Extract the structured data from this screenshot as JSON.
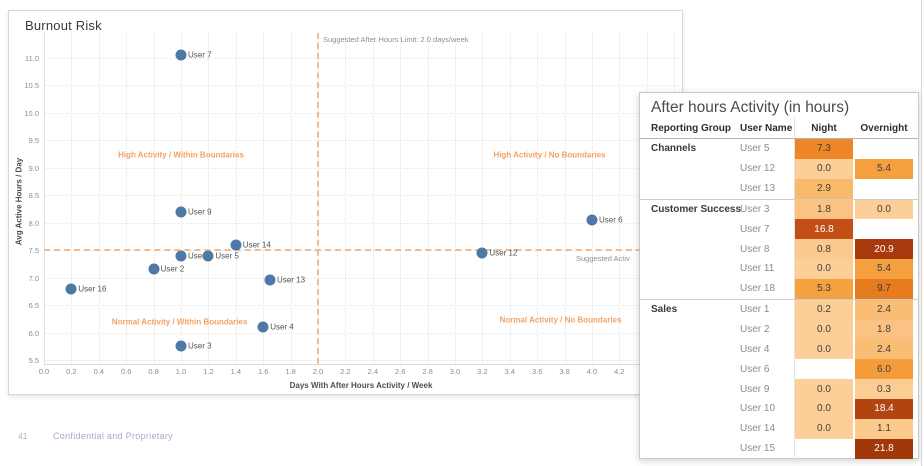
{
  "page": {
    "footer_page_number": "41",
    "footer_text": "Confidential and Proprietary"
  },
  "chart_data": [
    {
      "type": "scatter",
      "title": "Burnout Risk",
      "xlabel": "Days With After Hours Activity / Week",
      "ylabel": "Avg Active Hours / Day",
      "xlim": [
        0.0,
        4.2
      ],
      "ylim": [
        5.5,
        11.0
      ],
      "x_ticks": [
        "0.0",
        "0.2",
        "0.4",
        "0.6",
        "0.8",
        "1.0",
        "1.2",
        "1.4",
        "1.6",
        "1.8",
        "2.0",
        "2.2",
        "2.4",
        "2.6",
        "2.8",
        "3.0",
        "3.2",
        "3.4",
        "3.6",
        "3.8",
        "4.0",
        "4.2"
      ],
      "y_ticks": [
        "11.0",
        "10.5",
        "10.0",
        "9.5",
        "9.0",
        "8.5",
        "8.0",
        "7.5",
        "7.0",
        "6.5",
        "6.0",
        "5.5"
      ],
      "marker_color": "#4e79a7",
      "accent_color": "#f3a264",
      "ref_line_color": "#f2bc90",
      "grid": true,
      "points": [
        {
          "label": "User 7",
          "x": 1.0,
          "y": 11.05
        },
        {
          "label": "User 9",
          "x": 1.0,
          "y": 8.2
        },
        {
          "label": "User 14",
          "x": 1.4,
          "y": 7.6
        },
        {
          "label": "User 1",
          "x": 1.0,
          "y": 7.4
        },
        {
          "label": "User 5",
          "x": 1.2,
          "y": 7.4
        },
        {
          "label": "User 2",
          "x": 0.8,
          "y": 7.15
        },
        {
          "label": "User 16",
          "x": 0.2,
          "y": 6.8
        },
        {
          "label": "User 13",
          "x": 1.65,
          "y": 6.95
        },
        {
          "label": "User 4",
          "x": 1.6,
          "y": 6.1
        },
        {
          "label": "User 3",
          "x": 1.0,
          "y": 5.75
        },
        {
          "label": "User 12",
          "x": 3.2,
          "y": 7.45
        },
        {
          "label": "User 6",
          "x": 4.0,
          "y": 8.05
        }
      ],
      "ref_line_x": {
        "value": 2.0,
        "label": "Suggested After Hours Limit: 2.0 days/week"
      },
      "ref_line_y": {
        "value": 7.5,
        "label": "Suggested Activ"
      },
      "quadrant_labels": [
        {
          "text": "High Activity / Within Boundaries",
          "x": 1.0,
          "y": 9.23
        },
        {
          "text": "High Activity / No Boundaries",
          "x": 3.69,
          "y": 9.23
        },
        {
          "text": "Normal Activity / Within Boundaries",
          "x": 0.99,
          "y": 6.19
        },
        {
          "text": "Normal Activity / No Boundaries",
          "x": 3.77,
          "y": 6.23
        }
      ]
    },
    {
      "type": "table",
      "title": "After hours Activity (in hours)",
      "columns": [
        "Reporting Group",
        "User Name",
        "Night",
        "Overnight"
      ],
      "groups": [
        {
          "name": "Channels",
          "rows": [
            {
              "user": "User 5",
              "night": "7.3",
              "night_color": "#EE8526",
              "overnight": null,
              "overnight_color": null
            },
            {
              "user": "User 12",
              "night": "0.0",
              "night_color": "#FBCF97",
              "overnight": "5.4",
              "overnight_color": "#F5A03E"
            },
            {
              "user": "User 13",
              "night": "2.9",
              "night_color": "#F8B96B",
              "overnight": null,
              "overnight_color": null
            }
          ]
        },
        {
          "name": "Customer Success",
          "rows": [
            {
              "user": "User 3",
              "night": "1.8",
              "night_color": "#FAC384",
              "overnight": "0.0",
              "overnight_color": "#FBCF97"
            },
            {
              "user": "User 7",
              "night": "16.8",
              "night_color": "#C14F16",
              "overnight": null,
              "overnight_color": null
            },
            {
              "user": "User 8",
              "night": "0.8",
              "night_color": "#FBC98D",
              "overnight": "20.9",
              "overnight_color": "#A63A0D"
            },
            {
              "user": "User 11",
              "night": "0.0",
              "night_color": "#FBCF97",
              "overnight": "5.4",
              "overnight_color": "#F5A03E"
            },
            {
              "user": "User 18",
              "night": "5.3",
              "night_color": "#F5A140",
              "overnight": "9.7",
              "overnight_color": "#E67C1E"
            }
          ]
        },
        {
          "name": "Sales",
          "rows": [
            {
              "user": "User 1",
              "night": "0.2",
              "night_color": "#FBCE95",
              "overnight": "2.4",
              "overnight_color": "#F9BD74"
            },
            {
              "user": "User 2",
              "night": "0.0",
              "night_color": "#FBCF97",
              "overnight": "1.8",
              "overnight_color": "#FAC384"
            },
            {
              "user": "User 4",
              "night": "0.0",
              "night_color": "#FBCF97",
              "overnight": "2.4",
              "overnight_color": "#F9BD74"
            },
            {
              "user": "User 6",
              "night": null,
              "night_color": null,
              "overnight": "6.0",
              "overnight_color": "#F49C3A"
            },
            {
              "user": "User 9",
              "night": "0.0",
              "night_color": "#FBCF97",
              "overnight": "0.3",
              "overnight_color": "#FBCD93"
            },
            {
              "user": "User 10",
              "night": "0.0",
              "night_color": "#FBCF97",
              "overnight": "18.4",
              "overnight_color": "#B24411"
            },
            {
              "user": "User 14",
              "night": "0.0",
              "night_color": "#FBCF97",
              "overnight": "1.1",
              "overnight_color": "#FBC98B"
            },
            {
              "user": "User 15",
              "night": null,
              "night_color": null,
              "overnight": "21.8",
              "overnight_color": "#A2370A"
            }
          ]
        }
      ]
    }
  ]
}
